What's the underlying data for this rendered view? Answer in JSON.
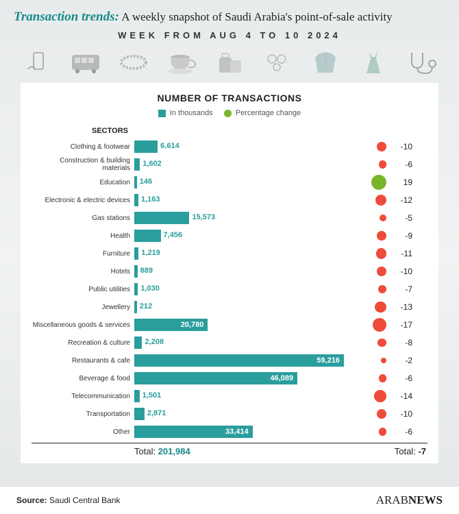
{
  "header": {
    "title_prefix": "Transaction trends:",
    "title_rest": " A weekly snapshot of Saudi Arabia's point-of-sale activity",
    "subtitle": "WEEK FROM AUG 4 TO 10 2024"
  },
  "icons": [
    "hand-phone",
    "bus",
    "bracelet",
    "coffee-cup",
    "luggage",
    "jewelry",
    "jacket",
    "dress",
    "stethoscope"
  ],
  "chart": {
    "title": "NUMBER OF TRANSACTIONS",
    "legend_bar": "In thousands",
    "legend_dot": "Percentage change",
    "sectors_heading": "SECTORS",
    "bar_color": "#2a9d9d",
    "bar_text_inside_color": "#ffffff",
    "bar_text_outside_color": "#2a9d9d",
    "dot_pos_color": "#79b52a",
    "dot_neg_color": "#ee4b3a",
    "max_value": 60000,
    "dot_min_size": 6,
    "dot_max_size": 22,
    "pct_abs_max": 19,
    "rows": [
      {
        "label": "Clothing & footwear",
        "value": 6614,
        "value_str": "6,614",
        "pct": -10
      },
      {
        "label": "Construction & building materials",
        "value": 1602,
        "value_str": "1,602",
        "pct": -6
      },
      {
        "label": "Education",
        "value": 146,
        "value_str": "146",
        "pct": 19
      },
      {
        "label": "Electronic & electric devices",
        "value": 1163,
        "value_str": "1,163",
        "pct": -12
      },
      {
        "label": "Gas stations",
        "value": 15573,
        "value_str": "15,573",
        "pct": -5
      },
      {
        "label": "Health",
        "value": 7456,
        "value_str": "7,456",
        "pct": -9
      },
      {
        "label": "Furniture",
        "value": 1219,
        "value_str": "1,219",
        "pct": -11
      },
      {
        "label": "Hotels",
        "value": 889,
        "value_str": "889",
        "pct": -10
      },
      {
        "label": "Public utilities",
        "value": 1030,
        "value_str": "1,030",
        "pct": -7
      },
      {
        "label": "Jewellery",
        "value": 212,
        "value_str": "212",
        "pct": -13
      },
      {
        "label": "Miscellaneous goods & services",
        "value": 20780,
        "value_str": "20,780",
        "pct": -17
      },
      {
        "label": "Recreation & culture",
        "value": 2208,
        "value_str": "2,208",
        "pct": -8
      },
      {
        "label": "Restaurants & cafe",
        "value": 59216,
        "value_str": "59,216",
        "pct": -2
      },
      {
        "label": "Beverage & food",
        "value": 46089,
        "value_str": "46,089",
        "pct": -6
      },
      {
        "label": "Telecommunication",
        "value": 1501,
        "value_str": "1,501",
        "pct": -14
      },
      {
        "label": "Transportation",
        "value": 2871,
        "value_str": "2,871",
        "pct": -10
      },
      {
        "label": "Other",
        "value": 33414,
        "value_str": "33,414",
        "pct": -6
      }
    ],
    "total_label": "Total:",
    "total_value": "201,984",
    "total_pct_label": "Total:",
    "total_pct_value": "-7"
  },
  "footer": {
    "source_label": "Source:",
    "source_value": "  Saudi Central Bank",
    "brand_a": "ARAB",
    "brand_b": "NEWS"
  }
}
